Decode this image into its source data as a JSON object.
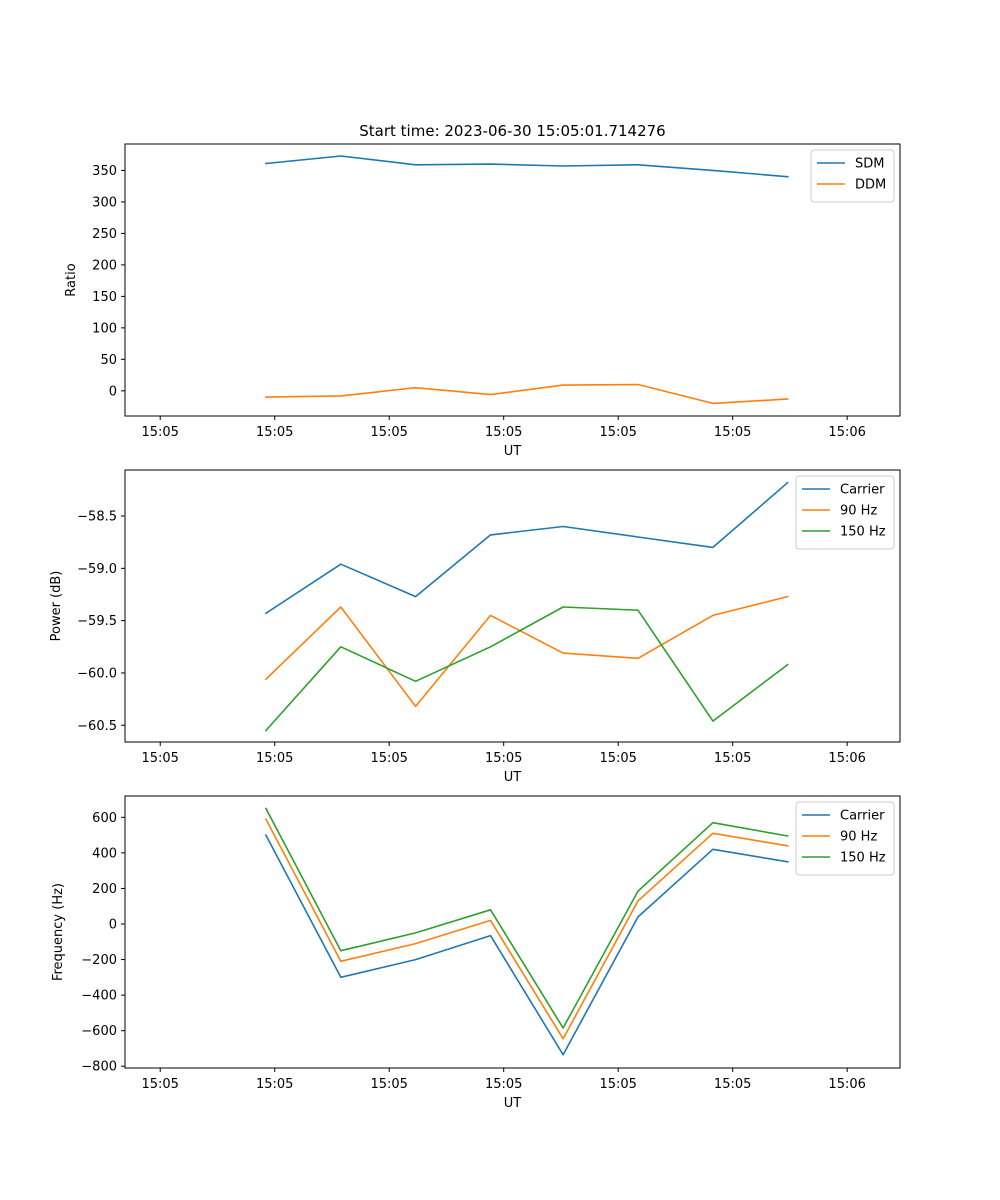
{
  "figure_title": "Start time: 2023-06-30 15:05:01.714276",
  "chart_data": [
    {
      "type": "line",
      "title": "Start time: 2023-06-30 15:05:01.714276",
      "xlabel": "UT",
      "ylabel": "Ratio",
      "x": [
        1.84,
        2.18,
        2.52,
        2.86,
        3.19,
        3.53,
        3.87,
        4.21
      ],
      "xlim": [
        1.2,
        4.72
      ],
      "xticks": [
        1.36,
        1.88,
        2.4,
        2.92,
        3.44,
        3.96,
        4.48
      ],
      "xtick_labels": [
        "15:05",
        "15:05",
        "15:05",
        "15:05",
        "15:05",
        "15:05",
        "15:06"
      ],
      "ylim": [
        -40,
        392
      ],
      "yticks": [
        0,
        50,
        100,
        150,
        200,
        250,
        300,
        350
      ],
      "ytick_labels": [
        "0",
        "50",
        "100",
        "150",
        "200",
        "250",
        "300",
        "350"
      ],
      "legend_position": "top-right",
      "grid": false,
      "series": [
        {
          "name": "SDM",
          "color": "#1f77b4",
          "values": [
            361,
            373,
            359,
            360,
            357,
            359,
            350,
            340
          ]
        },
        {
          "name": "DDM",
          "color": "#ff7f0e",
          "values": [
            -10,
            -8,
            5,
            -6,
            9,
            10,
            -20,
            -13
          ]
        }
      ]
    },
    {
      "type": "line",
      "title": "",
      "xlabel": "UT",
      "ylabel": "Power (dB)",
      "x": [
        1.84,
        2.18,
        2.52,
        2.86,
        3.19,
        3.53,
        3.87,
        4.21
      ],
      "xlim": [
        1.2,
        4.72
      ],
      "xticks": [
        1.36,
        1.88,
        2.4,
        2.92,
        3.44,
        3.96,
        4.48
      ],
      "xtick_labels": [
        "15:05",
        "15:05",
        "15:05",
        "15:05",
        "15:05",
        "15:05",
        "15:06"
      ],
      "ylim": [
        -60.66,
        -58.06
      ],
      "yticks": [
        -60.5,
        -60.0,
        -59.5,
        -59.0,
        -58.5
      ],
      "ytick_labels": [
        "−60.5",
        "−60.0",
        "−59.5",
        "−59.0",
        "−58.5"
      ],
      "legend_position": "top-right",
      "grid": false,
      "series": [
        {
          "name": "Carrier",
          "color": "#1f77b4",
          "values": [
            -59.43,
            -58.96,
            -59.27,
            -58.68,
            -58.6,
            -58.7,
            -58.8,
            -58.18
          ]
        },
        {
          "name": "90 Hz",
          "color": "#ff7f0e",
          "values": [
            -60.06,
            -59.37,
            -60.32,
            -59.45,
            -59.81,
            -59.86,
            -59.45,
            -59.27
          ]
        },
        {
          "name": "150 Hz",
          "color": "#2ca02c",
          "values": [
            -60.55,
            -59.75,
            -60.08,
            -59.75,
            -59.37,
            -59.4,
            -60.46,
            -59.92
          ]
        }
      ]
    },
    {
      "type": "line",
      "title": "",
      "xlabel": "UT",
      "ylabel": "Frequency (Hz)",
      "x": [
        1.84,
        2.18,
        2.52,
        2.86,
        3.19,
        3.53,
        3.87,
        4.21
      ],
      "xlim": [
        1.2,
        4.72
      ],
      "xticks": [
        1.36,
        1.88,
        2.4,
        2.92,
        3.44,
        3.96,
        4.48
      ],
      "xtick_labels": [
        "15:05",
        "15:05",
        "15:05",
        "15:05",
        "15:05",
        "15:05",
        "15:06"
      ],
      "ylim": [
        -810,
        720
      ],
      "yticks": [
        -800,
        -600,
        -400,
        -200,
        0,
        200,
        400,
        600
      ],
      "ytick_labels": [
        "−800",
        "−600",
        "−400",
        "−200",
        "0",
        "200",
        "400",
        "600"
      ],
      "legend_position": "top-right",
      "grid": false,
      "series": [
        {
          "name": "Carrier",
          "color": "#1f77b4",
          "values": [
            500,
            -300,
            -200,
            -65,
            -735,
            40,
            420,
            350
          ]
        },
        {
          "name": "90 Hz",
          "color": "#ff7f0e",
          "values": [
            590,
            -210,
            -110,
            20,
            -645,
            130,
            510,
            440
          ]
        },
        {
          "name": "150 Hz",
          "color": "#2ca02c",
          "values": [
            650,
            -150,
            -50,
            80,
            -585,
            185,
            570,
            495
          ]
        }
      ]
    }
  ]
}
